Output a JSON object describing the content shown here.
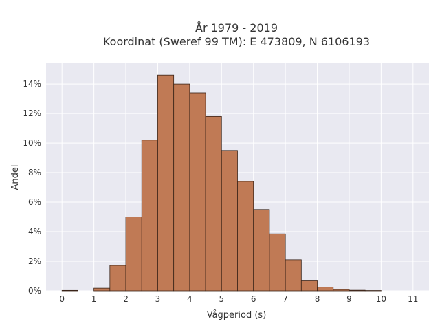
{
  "chart_data": {
    "type": "bar",
    "title_line1": "År 1979 - 2019",
    "title_line2": "Koordinat (Sweref 99 TM): E 473809, N 6106193",
    "xlabel": "Vågperiod (s)",
    "ylabel": "Andel",
    "bin_width": 0.5,
    "bins": [
      {
        "x0": 0.0,
        "value": 0.0003
      },
      {
        "x0": 0.5,
        "value": 0.0
      },
      {
        "x0": 1.0,
        "value": 0.0018
      },
      {
        "x0": 1.5,
        "value": 0.0172
      },
      {
        "x0": 2.0,
        "value": 0.05
      },
      {
        "x0": 2.5,
        "value": 0.102
      },
      {
        "x0": 3.0,
        "value": 0.146
      },
      {
        "x0": 3.5,
        "value": 0.14
      },
      {
        "x0": 4.0,
        "value": 0.134
      },
      {
        "x0": 4.5,
        "value": 0.118
      },
      {
        "x0": 5.0,
        "value": 0.095
      },
      {
        "x0": 5.5,
        "value": 0.074
      },
      {
        "x0": 6.0,
        "value": 0.055
      },
      {
        "x0": 6.5,
        "value": 0.0385
      },
      {
        "x0": 7.0,
        "value": 0.021
      },
      {
        "x0": 7.5,
        "value": 0.0072
      },
      {
        "x0": 8.0,
        "value": 0.0025
      },
      {
        "x0": 8.5,
        "value": 0.0009
      },
      {
        "x0": 9.0,
        "value": 0.0004
      },
      {
        "x0": 9.5,
        "value": 0.0002
      }
    ],
    "xlim": [
      -0.5,
      11.5
    ],
    "ylim": [
      0,
      0.154
    ],
    "xticks": [
      0,
      1,
      2,
      3,
      4,
      5,
      6,
      7,
      8,
      9,
      10,
      11
    ],
    "xtick_labels": [
      "0",
      "1",
      "2",
      "3",
      "4",
      "5",
      "6",
      "7",
      "8",
      "9",
      "10",
      "11"
    ],
    "yticks": [
      0,
      0.02,
      0.04,
      0.06,
      0.08,
      0.1,
      0.12,
      0.14
    ],
    "ytick_labels": [
      "0%",
      "2%",
      "4%",
      "6%",
      "8%",
      "10%",
      "12%",
      "14%"
    ],
    "grid": true,
    "bar_color": "#c07a55",
    "bar_edge_color": "#3a2418",
    "plot_background": "#e9e9f1",
    "grid_color": "#ffffff"
  }
}
